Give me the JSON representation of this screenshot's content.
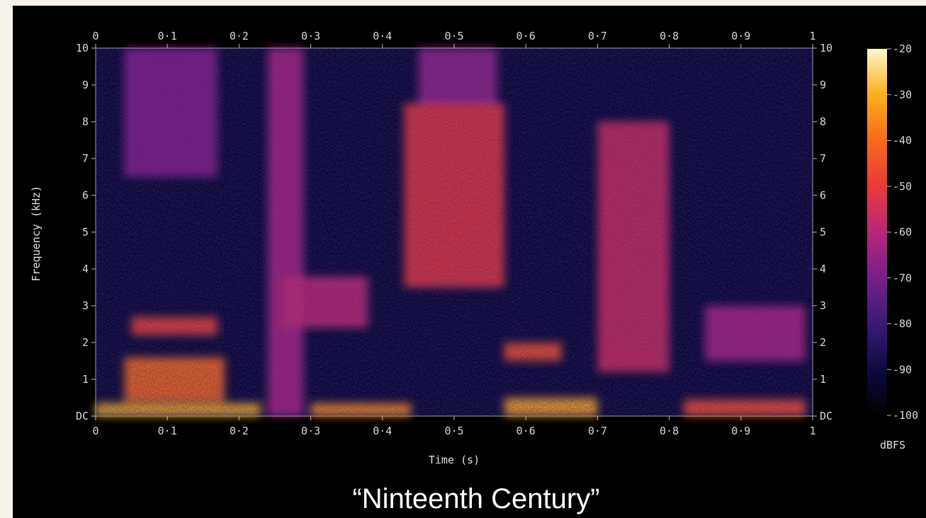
{
  "chart_data": {
    "type": "heatmap",
    "title": "",
    "caption": "“Ninteenth Century”",
    "xlabel": "Time (s)",
    "ylabel": "Frequency (kHz)",
    "xlim": [
      0,
      1
    ],
    "ylim": [
      0,
      10
    ],
    "x_ticks": [
      "0",
      "0·1",
      "0·2",
      "0·3",
      "0·4",
      "0·5",
      "0·6",
      "0·7",
      "0·8",
      "0·9",
      "1"
    ],
    "x_tick_values": [
      0,
      0.1,
      0.2,
      0.3,
      0.4,
      0.5,
      0.6,
      0.7,
      0.8,
      0.9,
      1.0
    ],
    "y_ticks": [
      "DC",
      "1",
      "2",
      "3",
      "4",
      "5",
      "6",
      "7",
      "8",
      "9",
      "10"
    ],
    "y_tick_values": [
      0,
      1,
      2,
      3,
      4,
      5,
      6,
      7,
      8,
      9,
      10
    ],
    "colorbar": {
      "label": "dBFS",
      "range": [
        -100,
        -20
      ],
      "ticks": [
        "-20",
        "-30",
        "-40",
        "-50",
        "-60",
        "-70",
        "-80",
        "-90",
        "-100"
      ],
      "tick_values": [
        -20,
        -30,
        -40,
        -50,
        -60,
        -70,
        -80,
        -90,
        -100
      ],
      "colormap": [
        "#000000",
        "#0c0a3e",
        "#3a1a78",
        "#7a1f8a",
        "#b8267a",
        "#e8383a",
        "#f86a1a",
        "#fbb21c",
        "#fff8d0"
      ]
    },
    "regions": [
      {
        "t": [
          0.0,
          0.23
        ],
        "f": [
          0.0,
          0.35
        ],
        "level_db": -30
      },
      {
        "t": [
          0.04,
          0.18
        ],
        "f": [
          0.4,
          1.6
        ],
        "level_db": -40
      },
      {
        "t": [
          0.05,
          0.17
        ],
        "f": [
          2.2,
          2.7
        ],
        "level_db": -48
      },
      {
        "t": [
          0.04,
          0.17
        ],
        "f": [
          6.5,
          10.0
        ],
        "level_db": -68
      },
      {
        "t": [
          0.24,
          0.29
        ],
        "f": [
          0.0,
          10.0
        ],
        "level_db": -62
      },
      {
        "t": [
          0.3,
          0.44
        ],
        "f": [
          0.0,
          0.35
        ],
        "level_db": -35
      },
      {
        "t": [
          0.26,
          0.38
        ],
        "f": [
          2.4,
          3.8
        ],
        "level_db": -58
      },
      {
        "t": [
          0.43,
          0.57
        ],
        "f": [
          3.5,
          8.5
        ],
        "level_db": -50
      },
      {
        "t": [
          0.45,
          0.56
        ],
        "f": [
          8.5,
          10.0
        ],
        "level_db": -66
      },
      {
        "t": [
          0.57,
          0.7
        ],
        "f": [
          0.0,
          0.5
        ],
        "level_db": -32
      },
      {
        "t": [
          0.57,
          0.65
        ],
        "f": [
          1.5,
          2.0
        ],
        "level_db": -45
      },
      {
        "t": [
          0.7,
          0.8
        ],
        "f": [
          1.2,
          8.0
        ],
        "level_db": -55
      },
      {
        "t": [
          0.82,
          0.99
        ],
        "f": [
          0.0,
          0.45
        ],
        "level_db": -45
      },
      {
        "t": [
          0.85,
          0.99
        ],
        "f": [
          1.5,
          3.0
        ],
        "level_db": -62
      }
    ]
  }
}
